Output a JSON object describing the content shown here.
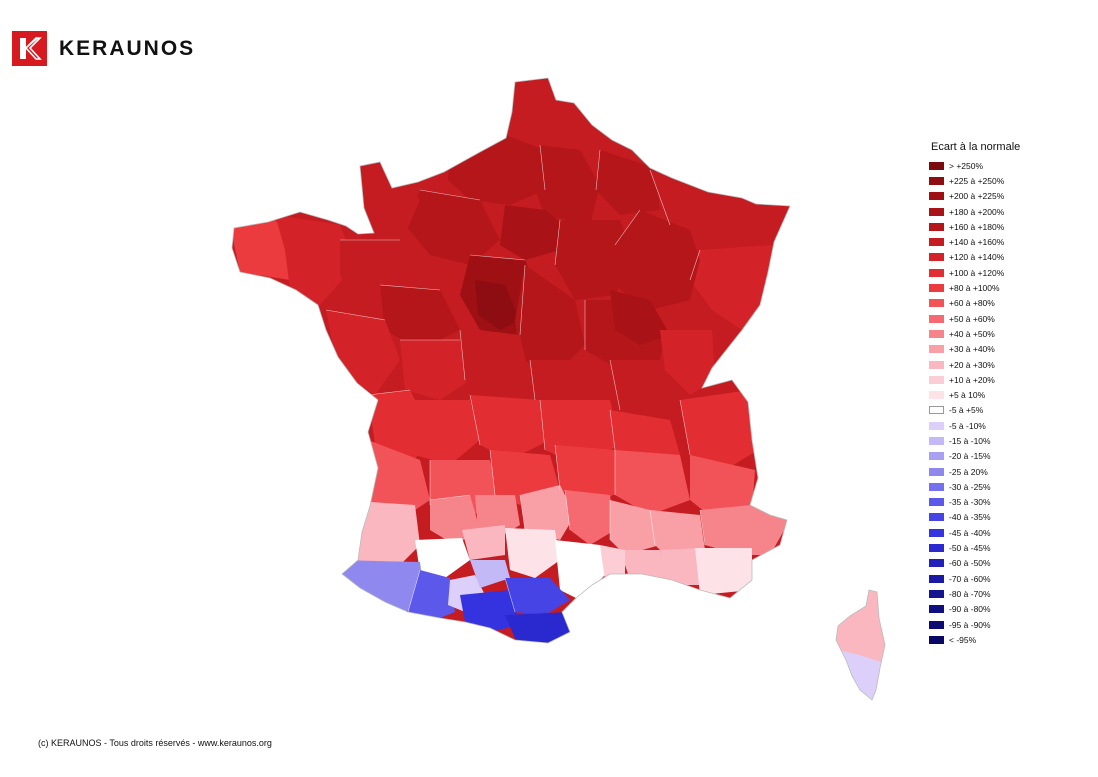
{
  "brand": {
    "name": "KERAUNOS",
    "logo_icon": "keraunos-k-logo-icon",
    "logo_color": "#d71920"
  },
  "legend": {
    "title": "Ecart à la normale",
    "classes": [
      {
        "label": "> +250%",
        "color": "#7b0a0e"
      },
      {
        "label": "+225 à +250%",
        "color": "#8e0d12"
      },
      {
        "label": "+200 à +225%",
        "color": "#9e1014"
      },
      {
        "label": "+180 à +200%",
        "color": "#a91216"
      },
      {
        "label": "+160 à +180%",
        "color": "#b4161a"
      },
      {
        "label": "+140 à +160%",
        "color": "#c41c21"
      },
      {
        "label": "+120 à +140%",
        "color": "#d42328"
      },
      {
        "label": "+100 à +120%",
        "color": "#e22e32"
      },
      {
        "label": "+80 à +100%",
        "color": "#ec3b3f"
      },
      {
        "label": "+60 à +80%",
        "color": "#f25358"
      },
      {
        "label": "+50 à +60%",
        "color": "#f46a70"
      },
      {
        "label": "+40 à +50%",
        "color": "#f6858b"
      },
      {
        "label": "+30 à +40%",
        "color": "#f8a0a6"
      },
      {
        "label": "+20 à +30%",
        "color": "#fab7bf"
      },
      {
        "label": "+10 à +20%",
        "color": "#fccdd4"
      },
      {
        "label": "+5 à 10%",
        "color": "#fde3e8"
      },
      {
        "label": "-5 à +5%",
        "color": "#ffffff"
      },
      {
        "label": "-5 à -10%",
        "color": "#dcd0fa"
      },
      {
        "label": "-15 à -10%",
        "color": "#c3b9f7"
      },
      {
        "label": "-20 à -15%",
        "color": "#a7a0f3"
      },
      {
        "label": "-25 à 20%",
        "color": "#8f88ef"
      },
      {
        "label": "-30 à -25%",
        "color": "#7570ec"
      },
      {
        "label": "-35 à -30%",
        "color": "#5c59ea"
      },
      {
        "label": "-40 à -35%",
        "color": "#4744e6"
      },
      {
        "label": "-45 à -40%",
        "color": "#3532e0"
      },
      {
        "label": "-50 à -45%",
        "color": "#2a28cf"
      },
      {
        "label": "-60 à -50%",
        "color": "#2220bb"
      },
      {
        "label": "-70 à -60%",
        "color": "#1a19a6"
      },
      {
        "label": "-80 à -70%",
        "color": "#141390"
      },
      {
        "label": "-90 à -80%",
        "color": "#0f0f80"
      },
      {
        "label": "-95 à -90%",
        "color": "#0c0c72"
      },
      {
        "label": "< -95%",
        "color": "#090965"
      }
    ]
  },
  "footer": {
    "copyright": "(c) KERAUNOS - Tous droits réservés - www.keraunos.org"
  }
}
